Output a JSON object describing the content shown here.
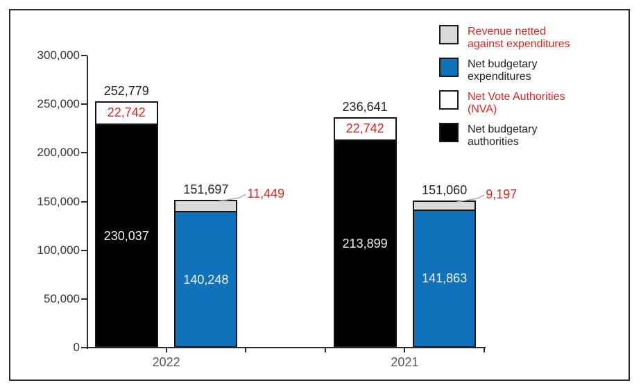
{
  "colors": {
    "red": "#E0231E",
    "blue": "#1072BA",
    "gray": "#D9D9D9",
    "white": "#FFFFFF",
    "black": "#000000",
    "axis": "#2B2B2B",
    "tick_label": "#333333",
    "year_label": "#595959",
    "total_label": "#1F1F1F",
    "inside_light": "#F2F2F2",
    "leader": "#ABABAB",
    "frame_border": "#2B2B2B"
  },
  "legend": {
    "items": [
      {
        "key": "revenue_netted",
        "label": "Revenue netted against expenditures",
        "swatch_color_key": "gray",
        "text_color_key": "red"
      },
      {
        "key": "net_expenditures",
        "label": "Net budgetary expenditures",
        "swatch_color_key": "blue",
        "text_color_key": "total_label"
      },
      {
        "key": "nva",
        "label": "Net Vote Authorities (NVA)",
        "swatch_color_key": "white",
        "text_color_key": "red"
      },
      {
        "key": "net_authorities",
        "label": "Net budgetary authorities",
        "swatch_color_key": "black",
        "text_color_key": "total_label"
      }
    ]
  },
  "axes": {
    "y_ticks": [
      {
        "value": 0,
        "label": "0"
      },
      {
        "value": 50000,
        "label": "50,000"
      },
      {
        "value": 100000,
        "label": "100,000"
      },
      {
        "value": 150000,
        "label": "150,000"
      },
      {
        "value": 200000,
        "label": "200,000"
      },
      {
        "value": 250000,
        "label": "250,000"
      },
      {
        "value": 300000,
        "label": "300,000"
      }
    ],
    "x_categories": [
      "2022",
      "2021"
    ]
  },
  "chart_data": {
    "type": "bar",
    "stacked": true,
    "title": "",
    "xlabel": "",
    "ylabel": "",
    "ylim": [
      0,
      300000
    ],
    "grid": false,
    "legend_position": "top-right",
    "categories": [
      "2022",
      "2021"
    ],
    "series": [
      {
        "name": "Net budgetary authorities",
        "values": [
          230037,
          213899
        ]
      },
      {
        "name": "Net Vote Authorities (NVA)",
        "values": [
          22742,
          22742
        ]
      },
      {
        "name": "Net budgetary expenditures",
        "values": [
          140248,
          141863
        ]
      },
      {
        "name": "Revenue netted against expenditures",
        "values": [
          11449,
          9197
        ]
      }
    ],
    "groups": [
      {
        "category": "2022",
        "bars": [
          {
            "name": "authorities-stack-2022",
            "total": 252779,
            "total_label": "252,779",
            "segments": [
              {
                "series_key": "net_authorities",
                "color_key": "black",
                "value": 230037,
                "label": "230,037",
                "label_pos": "inside",
                "label_color_key": "inside_light"
              },
              {
                "series_key": "nva",
                "color_key": "white",
                "value": 22742,
                "label": "22,742",
                "label_pos": "inside",
                "label_color_key": "red"
              }
            ]
          },
          {
            "name": "expenditures-stack-2022",
            "total": 151697,
            "total_label": "151,697",
            "segments": [
              {
                "series_key": "net_expenditures",
                "color_key": "blue",
                "value": 140248,
                "label": "140,248",
                "label_pos": "inside",
                "label_color_key": "inside_light"
              },
              {
                "series_key": "revenue_netted",
                "color_key": "gray",
                "value": 11449,
                "label": "11,449",
                "label_pos": "callout",
                "label_color_key": "red"
              }
            ]
          }
        ]
      },
      {
        "category": "2021",
        "bars": [
          {
            "name": "authorities-stack-2021",
            "total": 236641,
            "total_label": "236,641",
            "segments": [
              {
                "series_key": "net_authorities",
                "color_key": "black",
                "value": 213899,
                "label": "213,899",
                "label_pos": "inside",
                "label_color_key": "inside_light"
              },
              {
                "series_key": "nva",
                "color_key": "white",
                "value": 22742,
                "label": "22,742",
                "label_pos": "inside",
                "label_color_key": "red"
              }
            ]
          },
          {
            "name": "expenditures-stack-2021",
            "total": 151060,
            "total_label": "151,060",
            "segments": [
              {
                "series_key": "net_expenditures",
                "color_key": "blue",
                "value": 141863,
                "label": "141,863",
                "label_pos": "inside",
                "label_color_key": "inside_light"
              },
              {
                "series_key": "revenue_netted",
                "color_key": "gray",
                "value": 9197,
                "label": "9,197",
                "label_pos": "callout",
                "label_color_key": "red"
              }
            ]
          }
        ]
      }
    ]
  }
}
